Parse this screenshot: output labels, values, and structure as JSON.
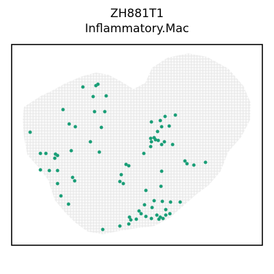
{
  "chart_data": {
    "type": "scatter",
    "title_lines": [
      "ZH881T1",
      "Inflammatory.Mac"
    ],
    "xlabel": "",
    "ylabel": "",
    "grid": false,
    "legend": "none",
    "axes_ticks": false,
    "colors": {
      "background_spot": "#ececec",
      "highlight_spot": "#1a9e77",
      "frame": "#000000"
    },
    "tissue_outline": [
      [
        35,
        156
      ],
      [
        60,
        140
      ],
      [
        75,
        133
      ],
      [
        95,
        122
      ],
      [
        118,
        112
      ],
      [
        140,
        106
      ],
      [
        158,
        109
      ],
      [
        175,
        118
      ],
      [
        195,
        130
      ],
      [
        212,
        121
      ],
      [
        222,
        99
      ],
      [
        245,
        84
      ],
      [
        275,
        78
      ],
      [
        302,
        83
      ],
      [
        333,
        100
      ],
      [
        355,
        125
      ],
      [
        366,
        150
      ],
      [
        365,
        175
      ],
      [
        352,
        200
      ],
      [
        333,
        222
      ],
      [
        322,
        250
      ],
      [
        305,
        270
      ],
      [
        285,
        285
      ],
      [
        268,
        300
      ],
      [
        248,
        318
      ],
      [
        225,
        330
      ],
      [
        200,
        333
      ],
      [
        175,
        337
      ],
      [
        150,
        342
      ],
      [
        128,
        338
      ],
      [
        110,
        325
      ],
      [
        95,
        310
      ],
      [
        80,
        292
      ],
      [
        70,
        262
      ],
      [
        57,
        245
      ],
      [
        40,
        226
      ],
      [
        35,
        200
      ],
      [
        33,
        175
      ]
    ],
    "series": [
      {
        "points": [
          [
            121,
            127
          ],
          [
            140,
            125
          ],
          [
            143,
            123
          ],
          [
            136,
            141
          ],
          [
            155,
            140
          ],
          [
            92,
            160
          ],
          [
            138,
            163
          ],
          [
            153,
            163
          ],
          [
            256,
            168
          ],
          [
            241,
            170
          ],
          [
            234,
            176
          ],
          [
            221,
            178
          ],
          [
            101,
            181
          ],
          [
            110,
            185
          ],
          [
            148,
            186
          ],
          [
            44,
            193
          ],
          [
            236,
            185
          ],
          [
            247,
            184
          ],
          [
            230,
            192
          ],
          [
            220,
            202
          ],
          [
            225,
            201
          ],
          [
            227,
            204
          ],
          [
            221,
            207
          ],
          [
            220,
            214
          ],
          [
            231,
            205
          ],
          [
            240,
            207
          ],
          [
            236,
            211
          ],
          [
            252,
            211
          ],
          [
            132,
            207
          ],
          [
            145,
            222
          ],
          [
            210,
            224
          ],
          [
            59,
            224
          ],
          [
            67,
            224
          ],
          [
            81,
            225
          ],
          [
            84,
            227
          ],
          [
            80,
            231
          ],
          [
            104,
            220
          ],
          [
            59,
            248
          ],
          [
            72,
            249
          ],
          [
            84,
            249
          ],
          [
            184,
            240
          ],
          [
            188,
            242
          ],
          [
            270,
            235
          ],
          [
            273,
            239
          ],
          [
            283,
            241
          ],
          [
            300,
            237
          ],
          [
            177,
            255
          ],
          [
            236,
            250
          ],
          [
            106,
            259
          ],
          [
            109,
            264
          ],
          [
            175,
            265
          ],
          [
            180,
            268
          ],
          [
            84,
            268
          ],
          [
            213,
            278
          ],
          [
            235,
            272
          ],
          [
            89,
            286
          ],
          [
            225,
            293
          ],
          [
            237,
            294
          ],
          [
            100,
            298
          ],
          [
            211,
            299
          ],
          [
            249,
            295
          ],
          [
            263,
            295
          ],
          [
            222,
            303
          ],
          [
            242,
            306
          ],
          [
            203,
            308
          ],
          [
            206,
            312
          ],
          [
            213,
            316
          ],
          [
            221,
            319
          ],
          [
            229,
            314
          ],
          [
            234,
            317
          ],
          [
            238,
            319
          ],
          [
            242,
            314
          ],
          [
            248,
            312
          ],
          [
            189,
            317
          ],
          [
            191,
            321
          ],
          [
            188,
            327
          ],
          [
            175,
            330
          ],
          [
            150,
            335
          ],
          [
            199,
            320
          ],
          [
            232,
            320
          ]
        ]
      }
    ]
  }
}
